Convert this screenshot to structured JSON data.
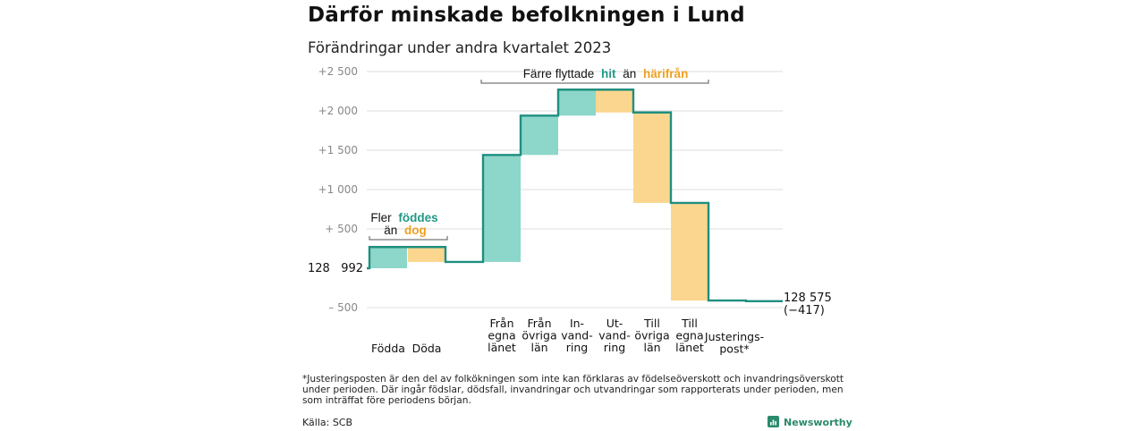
{
  "title": "Därför minskade befolkningen i Lund",
  "subtitle": "Förändringar under andra kvartalet 2023",
  "footnote": "*Justeringsposten är den del av folkökningen som inte kan förklaras av födelseöverskott och invandringsöverskott under perioden. Där ingår födslar, dödsfall, invandringar och utvandringar som rapporterats under perioden, men som inträffat före periodens början.",
  "source": "Källa: SCB",
  "brand": {
    "name": "Newsworthy",
    "icon": "newsworthy-logo-icon"
  },
  "colors": {
    "increase": "#8dd6ca",
    "decrease": "#fbd68f",
    "line": "#1f8f7f",
    "hit": "#1f9a85",
    "harifran": "#f0a020",
    "grid": "#dddddd"
  },
  "annotations": {
    "births": {
      "w1": "Fler",
      "w2": "föddes",
      "w3": "än",
      "w4": "dog"
    },
    "moves": {
      "w1": "Färre flyttade",
      "w2": "hit",
      "w3": "än",
      "w4": "härifrån"
    }
  },
  "chart_data": {
    "type": "waterfall",
    "start": {
      "label": "128   992",
      "value": 128992
    },
    "end": {
      "value": 128575,
      "label": "128 575",
      "sublabel": "(−417)"
    },
    "y_ticks": [
      {
        "value": 128492,
        "label": "–  500"
      },
      {
        "value": 129492,
        "label": "+   500"
      },
      {
        "value": 129992,
        "label": "+1   000"
      },
      {
        "value": 130492,
        "label": "+1   500"
      },
      {
        "value": 130992,
        "label": "+2   000"
      },
      {
        "value": 131492,
        "label": "+2   500"
      }
    ],
    "ylim": [
      128400,
      131650
    ],
    "grid": true,
    "steps": [
      {
        "label": [
          "Födda"
        ],
        "change": 270,
        "type": "increase"
      },
      {
        "label": [
          "Döda"
        ],
        "change": -190,
        "type": "decrease"
      },
      {
        "label": [
          "Från",
          "egna",
          "länet"
        ],
        "change": 1360,
        "type": "increase"
      },
      {
        "label": [
          "Från",
          "övriga",
          "län"
        ],
        "change": 500,
        "type": "increase"
      },
      {
        "label": [
          "In-",
          "vand-",
          "ring"
        ],
        "change": 330,
        "type": "increase"
      },
      {
        "label": [
          "Ut-",
          "vand-",
          "ring"
        ],
        "change": -290,
        "type": "decrease"
      },
      {
        "label": [
          "Till",
          "övriga",
          "län"
        ],
        "change": -1150,
        "type": "decrease"
      },
      {
        "label": [
          "Till",
          "egna",
          "länet"
        ],
        "change": -1240,
        "type": "decrease"
      },
      {
        "label": [
          "Justerings-",
          "post*"
        ],
        "change": -8,
        "type": "decrease"
      }
    ]
  }
}
